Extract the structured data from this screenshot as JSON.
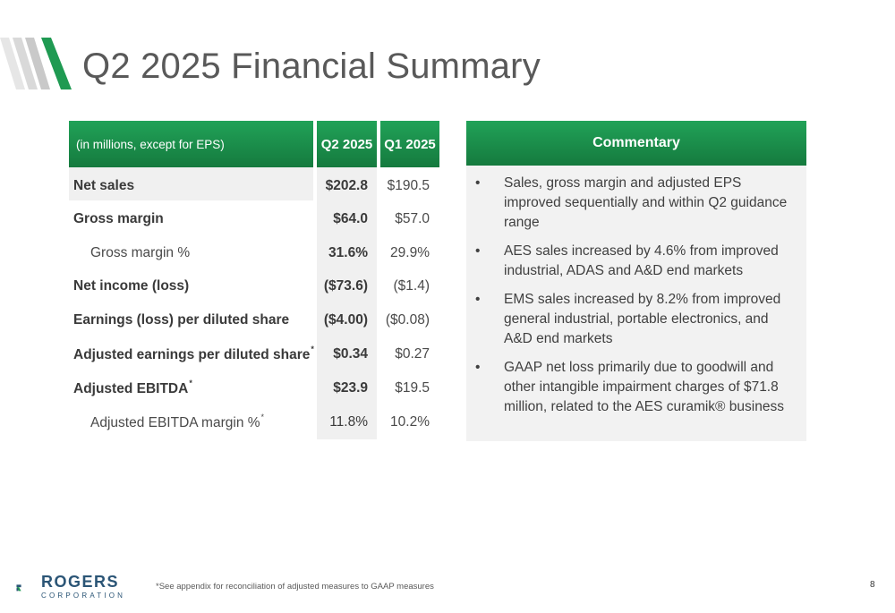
{
  "slide": {
    "title": "Q2 2025 Financial Summary",
    "page_number": "8",
    "footnote": "*See appendix for reconciliation of adjusted measures to GAAP measures"
  },
  "table": {
    "header_label": "(in millions, except for EPS)",
    "col_q2": "Q2 2025",
    "col_q1": "Q1 2025",
    "rows": [
      {
        "label": "Net sales",
        "q2": "$202.8",
        "q1": "$190.5",
        "footnote": ""
      },
      {
        "label": "Gross margin",
        "q2": "$64.0",
        "q1": "$57.0",
        "footnote": ""
      },
      {
        "label": "Gross margin %",
        "q2": "31.6%",
        "q1": "29.9%",
        "footnote": ""
      },
      {
        "label": "Net income (loss)",
        "q2": "($73.6)",
        "q1": "($1.4)",
        "footnote": ""
      },
      {
        "label": "Earnings (loss) per diluted share",
        "q2": "($4.00)",
        "q1": "($0.08)",
        "footnote": ""
      },
      {
        "label": "Adjusted earnings per diluted share",
        "q2": "$0.34",
        "q1": "$0.27",
        "footnote": "*"
      },
      {
        "label": "Adjusted EBITDA",
        "q2": "$23.9",
        "q1": "$19.5",
        "footnote": "*"
      },
      {
        "label": "Adjusted EBITDA margin %",
        "q2": "11.8%",
        "q1": "10.2%",
        "footnote": "*"
      }
    ]
  },
  "commentary": {
    "title": "Commentary",
    "bullet_char": "•",
    "bullets": [
      "Sales, gross margin and adjusted EPS improved sequentially and within Q2 guidance range",
      "AES sales increased by 4.6% from improved industrial, ADAS and A&D end markets",
      "EMS sales increased by 8.2% from improved general industrial, portable electronics, and A&D end markets",
      "GAAP net loss primarily due to goodwill and other intangible impairment charges of $71.8 million, related to the AES curamik® business"
    ]
  },
  "logo": {
    "name": "ROGERS",
    "sub": "CORPORATION"
  },
  "colors": {
    "green_light": "#21a258",
    "green_dark": "#157a3e",
    "title_gray": "#595959",
    "shade_gray": "#f0f0f0",
    "logo_blue": "#2b5576"
  },
  "icons": {
    "title_mark": "diagonal-stripes-icon",
    "logo_mark": "rogers-logo-icon"
  }
}
